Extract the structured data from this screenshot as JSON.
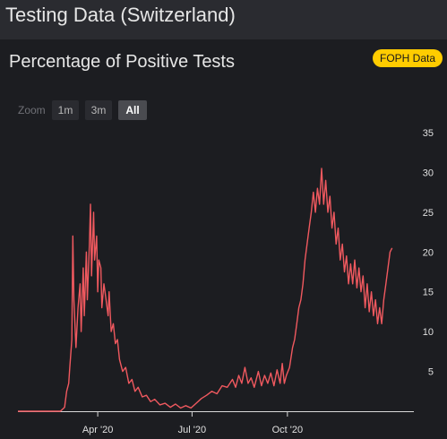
{
  "app": {
    "title": "Testing Data (Switzerland)"
  },
  "panel": {
    "title": "Percentage of Positive Tests",
    "source_badge": "FOPH Data"
  },
  "zoom": {
    "label": "Zoom",
    "buttons": [
      "1m",
      "3m",
      "All"
    ],
    "active": "All"
  },
  "colors": {
    "line": "#f0595f",
    "badge": "#ffcc00",
    "background": "#1c1d21"
  },
  "chart_data": {
    "type": "line",
    "title": "Percentage of Positive Tests",
    "xlabel": "",
    "ylabel": "",
    "xlim": [
      "2020-01-15",
      "2021-01-31"
    ],
    "ylim": [
      0,
      35
    ],
    "y_ticks": [
      5,
      10,
      15,
      20,
      25,
      30,
      35
    ],
    "x_ticks": [
      {
        "date": "2020-04-01",
        "label": "Apr '20"
      },
      {
        "date": "2020-07-01",
        "label": "Jul '20"
      },
      {
        "date": "2020-10-01",
        "label": "Oct '20"
      }
    ],
    "grid": false,
    "series": [
      {
        "points": [
          [
            "2020-01-15",
            0
          ],
          [
            "2020-02-25",
            0
          ],
          [
            "2020-02-29",
            0.5
          ],
          [
            "2020-03-02",
            2.5
          ],
          [
            "2020-03-04",
            3.5
          ],
          [
            "2020-03-05",
            5.5
          ],
          [
            "2020-03-07",
            9
          ],
          [
            "2020-03-08",
            22
          ],
          [
            "2020-03-09",
            14
          ],
          [
            "2020-03-11",
            8
          ],
          [
            "2020-03-13",
            13
          ],
          [
            "2020-03-15",
            16
          ],
          [
            "2020-03-16",
            10
          ],
          [
            "2020-03-18",
            18
          ],
          [
            "2020-03-19",
            12
          ],
          [
            "2020-03-21",
            20
          ],
          [
            "2020-03-22",
            14
          ],
          [
            "2020-03-24",
            21
          ],
          [
            "2020-03-25",
            26
          ],
          [
            "2020-03-26",
            17
          ],
          [
            "2020-03-28",
            25
          ],
          [
            "2020-03-29",
            19
          ],
          [
            "2020-03-31",
            22
          ],
          [
            "2020-04-01",
            15
          ],
          [
            "2020-04-02",
            19
          ],
          [
            "2020-04-04",
            18
          ],
          [
            "2020-04-05",
            13
          ],
          [
            "2020-04-07",
            16
          ],
          [
            "2020-04-09",
            14
          ],
          [
            "2020-04-11",
            12
          ],
          [
            "2020-04-12",
            15
          ],
          [
            "2020-04-14",
            10
          ],
          [
            "2020-04-16",
            11
          ],
          [
            "2020-04-18",
            8.5
          ],
          [
            "2020-04-20",
            9
          ],
          [
            "2020-04-22",
            6.5
          ],
          [
            "2020-04-25",
            5
          ],
          [
            "2020-04-28",
            5.5
          ],
          [
            "2020-05-01",
            3.5
          ],
          [
            "2020-05-04",
            4
          ],
          [
            "2020-05-07",
            2.5
          ],
          [
            "2020-05-10",
            3
          ],
          [
            "2020-05-14",
            1.8
          ],
          [
            "2020-05-18",
            2
          ],
          [
            "2020-05-22",
            1.2
          ],
          [
            "2020-05-26",
            1.5
          ],
          [
            "2020-05-31",
            0.8
          ],
          [
            "2020-06-05",
            1
          ],
          [
            "2020-06-10",
            0.5
          ],
          [
            "2020-06-15",
            0.9
          ],
          [
            "2020-06-20",
            0.4
          ],
          [
            "2020-06-25",
            0.7
          ],
          [
            "2020-06-30",
            0.4
          ],
          [
            "2020-07-05",
            1
          ],
          [
            "2020-07-10",
            1.6
          ],
          [
            "2020-07-15",
            2
          ],
          [
            "2020-07-20",
            2.5
          ],
          [
            "2020-07-25",
            2.2
          ],
          [
            "2020-07-30",
            3.2
          ],
          [
            "2020-08-04",
            3
          ],
          [
            "2020-08-09",
            4
          ],
          [
            "2020-08-12",
            3
          ],
          [
            "2020-08-15",
            4.5
          ],
          [
            "2020-08-18",
            3.5
          ],
          [
            "2020-08-21",
            5.5
          ],
          [
            "2020-08-24",
            3.5
          ],
          [
            "2020-08-27",
            4.2
          ],
          [
            "2020-08-30",
            3
          ],
          [
            "2020-09-03",
            5
          ],
          [
            "2020-09-06",
            3.2
          ],
          [
            "2020-09-09",
            4.5
          ],
          [
            "2020-09-12",
            3.5
          ],
          [
            "2020-09-15",
            4.8
          ],
          [
            "2020-09-18",
            3.2
          ],
          [
            "2020-09-21",
            5.2
          ],
          [
            "2020-09-24",
            3.5
          ],
          [
            "2020-09-26",
            6
          ],
          [
            "2020-09-28",
            3.5
          ],
          [
            "2020-09-30",
            4.5
          ],
          [
            "2020-10-03",
            5.5
          ],
          [
            "2020-10-06",
            8
          ],
          [
            "2020-10-08",
            9
          ],
          [
            "2020-10-10",
            11
          ],
          [
            "2020-10-12",
            13
          ],
          [
            "2020-10-14",
            14
          ],
          [
            "2020-10-16",
            16
          ],
          [
            "2020-10-18",
            19
          ],
          [
            "2020-10-20",
            21
          ],
          [
            "2020-10-22",
            23
          ],
          [
            "2020-10-24",
            25
          ],
          [
            "2020-10-26",
            27.5
          ],
          [
            "2020-10-28",
            25
          ],
          [
            "2020-10-30",
            28
          ],
          [
            "2020-11-01",
            26
          ],
          [
            "2020-11-03",
            30.5
          ],
          [
            "2020-11-05",
            26
          ],
          [
            "2020-11-07",
            29
          ],
          [
            "2020-11-09",
            25
          ],
          [
            "2020-11-11",
            27
          ],
          [
            "2020-11-13",
            23
          ],
          [
            "2020-11-15",
            25
          ],
          [
            "2020-11-17",
            21
          ],
          [
            "2020-11-19",
            23
          ],
          [
            "2020-11-21",
            19
          ],
          [
            "2020-11-23",
            21
          ],
          [
            "2020-11-25",
            17.5
          ],
          [
            "2020-11-27",
            19.5
          ],
          [
            "2020-11-29",
            16
          ],
          [
            "2020-12-01",
            18.5
          ],
          [
            "2020-12-03",
            16
          ],
          [
            "2020-12-05",
            19
          ],
          [
            "2020-12-07",
            15.5
          ],
          [
            "2020-12-09",
            18
          ],
          [
            "2020-12-11",
            15
          ],
          [
            "2020-12-13",
            17
          ],
          [
            "2020-12-15",
            13
          ],
          [
            "2020-12-17",
            16
          ],
          [
            "2020-12-19",
            12.5
          ],
          [
            "2020-12-21",
            15
          ],
          [
            "2020-12-23",
            12
          ],
          [
            "2020-12-25",
            14
          ],
          [
            "2020-12-27",
            11
          ],
          [
            "2020-12-29",
            13
          ],
          [
            "2020-12-31",
            11
          ],
          [
            "2021-01-02",
            14
          ],
          [
            "2021-01-04",
            16
          ],
          [
            "2021-01-06",
            18
          ],
          [
            "2021-01-08",
            20
          ],
          [
            "2021-01-10",
            20.5
          ]
        ]
      }
    ]
  }
}
